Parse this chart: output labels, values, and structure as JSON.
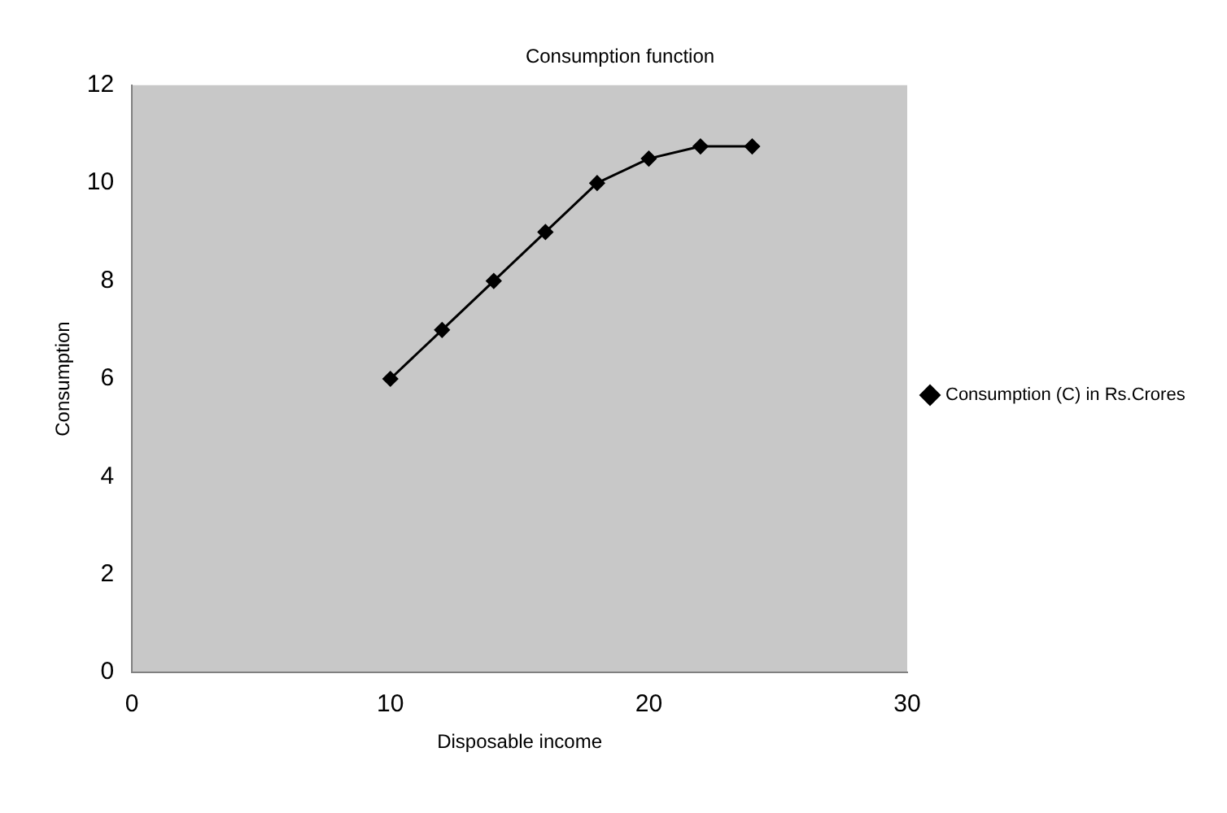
{
  "chart_data": {
    "type": "line",
    "title": "Consumption function",
    "xlabel": "Disposable income",
    "ylabel": "Consumption",
    "x": [
      10,
      12,
      14,
      16,
      18,
      20,
      22,
      24
    ],
    "series": [
      {
        "name": "Consumption (C) in Rs.Crores",
        "color": "#000000",
        "values": [
          6,
          7,
          8,
          9,
          10,
          10.5,
          10.75,
          10.75
        ]
      }
    ],
    "xlim": [
      0,
      30
    ],
    "xticks": [
      0,
      10,
      20,
      30
    ],
    "ylim": [
      0,
      12
    ],
    "yticks": [
      0,
      2,
      4,
      6,
      8,
      10,
      12
    ],
    "grid": false,
    "legend": "right",
    "marker": "diamond",
    "line_style": "solid"
  }
}
